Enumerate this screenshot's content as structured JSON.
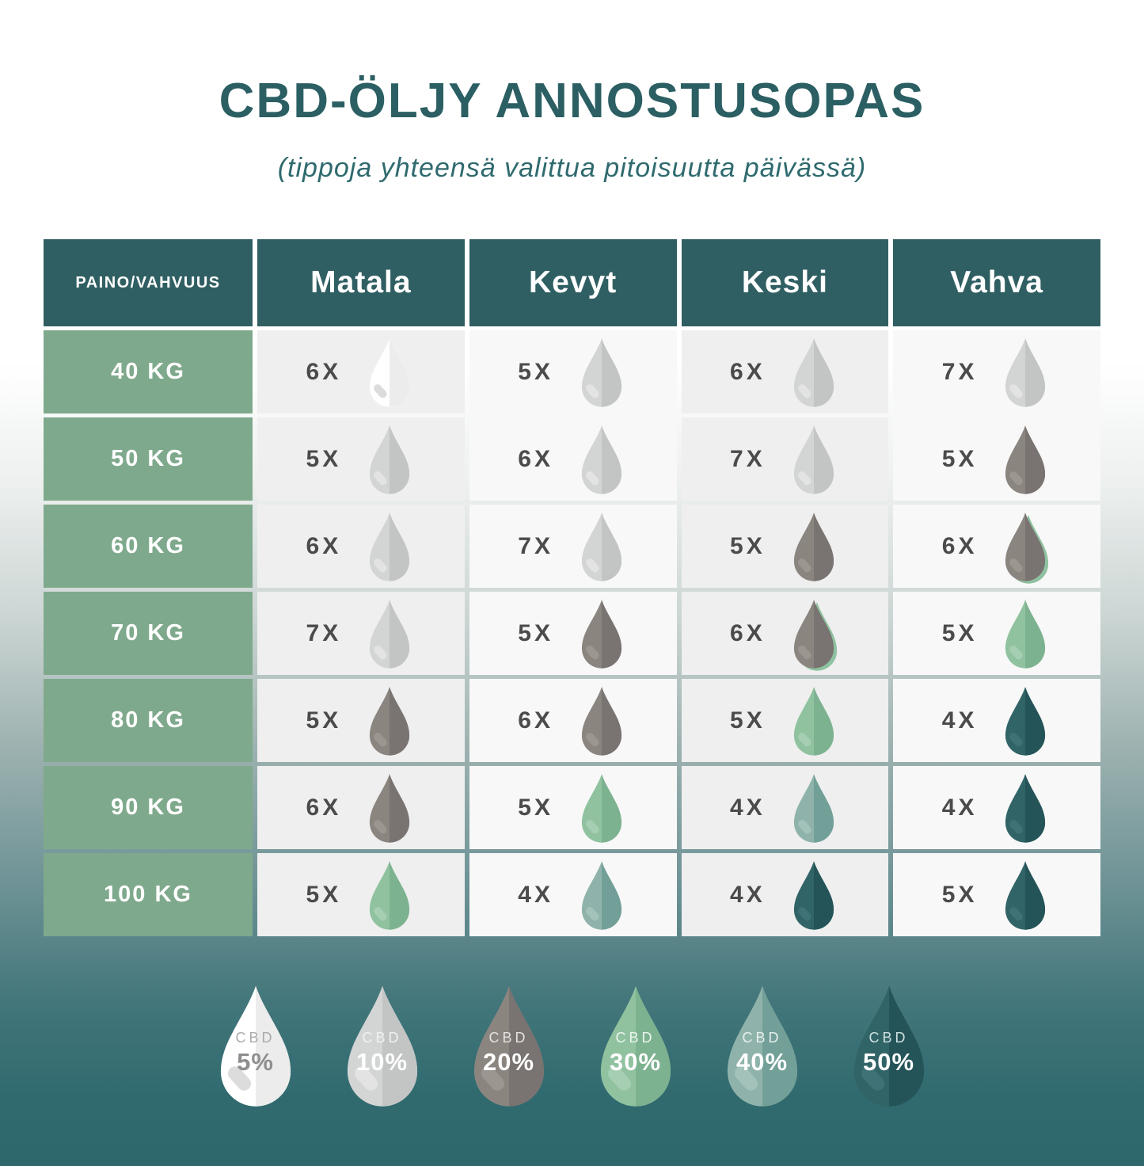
{
  "title": "CBD-ÖLJY ANNOSTUSOPAS",
  "subtitle": "(tippoja yhteensä valittua pitoisuutta päivässä)",
  "colors": {
    "header_bg": "#305f63",
    "weight_bg": "#7fa98c",
    "page_teal": "#316b70",
    "title_text": "#2b5f63",
    "count_text": "#4b4b4b",
    "accent_green": "#8fc2a0"
  },
  "drop_colors": {
    "5": {
      "left": "#ffffff",
      "right": "#ececec",
      "highlight": "#dcdcdc"
    },
    "10": {
      "left": "#d3d5d5",
      "right": "#c3c5c5",
      "highlight": "#e3e3e3"
    },
    "20": {
      "left": "#8b8580",
      "right": "#797371",
      "highlight": "#9c9691"
    },
    "30": {
      "left": "#90c2a0",
      "right": "#7db290",
      "highlight": "#a5ceb2"
    },
    "40": {
      "left": "#8fb3ab",
      "right": "#72a098",
      "highlight": "#a3c2ba"
    },
    "50": {
      "left": "#316467",
      "right": "#255458",
      "highlight": "#3e7276"
    }
  },
  "table": {
    "corner_label": "PAINO/VAHVUUS",
    "columns": [
      "Matala",
      "Kevyt",
      "Keski",
      "Vahva"
    ],
    "rows": [
      {
        "weight": "40 KG",
        "cells": [
          {
            "count": "6X",
            "pct": "5"
          },
          {
            "count": "5X",
            "pct": "10"
          },
          {
            "count": "6X",
            "pct": "10"
          },
          {
            "count": "7X",
            "pct": "10"
          }
        ]
      },
      {
        "weight": "50 KG",
        "cells": [
          {
            "count": "5X",
            "pct": "10"
          },
          {
            "count": "6X",
            "pct": "10"
          },
          {
            "count": "7X",
            "pct": "10"
          },
          {
            "count": "5X",
            "pct": "20"
          }
        ]
      },
      {
        "weight": "60 KG",
        "cells": [
          {
            "count": "6X",
            "pct": "10"
          },
          {
            "count": "7X",
            "pct": "10"
          },
          {
            "count": "5X",
            "pct": "20"
          },
          {
            "count": "6X",
            "pct": "20",
            "accent": true
          }
        ]
      },
      {
        "weight": "70 KG",
        "cells": [
          {
            "count": "7X",
            "pct": "10"
          },
          {
            "count": "5X",
            "pct": "20"
          },
          {
            "count": "6X",
            "pct": "20",
            "accent": true
          },
          {
            "count": "5X",
            "pct": "30"
          }
        ]
      },
      {
        "weight": "80 KG",
        "cells": [
          {
            "count": "5X",
            "pct": "20"
          },
          {
            "count": "6X",
            "pct": "20"
          },
          {
            "count": "5X",
            "pct": "30"
          },
          {
            "count": "4X",
            "pct": "50"
          }
        ]
      },
      {
        "weight": "90 KG",
        "cells": [
          {
            "count": "6X",
            "pct": "20"
          },
          {
            "count": "5X",
            "pct": "30"
          },
          {
            "count": "4X",
            "pct": "40"
          },
          {
            "count": "4X",
            "pct": "50"
          }
        ]
      },
      {
        "weight": "100 KG",
        "cells": [
          {
            "count": "5X",
            "pct": "30"
          },
          {
            "count": "4X",
            "pct": "40"
          },
          {
            "count": "4X",
            "pct": "50"
          },
          {
            "count": "5X",
            "pct": "50"
          }
        ]
      }
    ]
  },
  "legend": {
    "items": [
      {
        "label": "CBD",
        "pct": "5",
        "pct_label": "5%",
        "cbd_color": "#ababab",
        "pct_color": "#8e8e8e"
      },
      {
        "label": "CBD",
        "pct": "10",
        "pct_label": "10%",
        "cbd_color": "#f0f0f0",
        "pct_color": "#ffffff"
      },
      {
        "label": "CBD",
        "pct": "20",
        "pct_label": "20%",
        "cbd_color": "#e4e1de",
        "pct_color": "#ffffff"
      },
      {
        "label": "CBD",
        "pct": "30",
        "pct_label": "30%",
        "cbd_color": "#eaf5ee",
        "pct_color": "#ffffff"
      },
      {
        "label": "CBD",
        "pct": "40",
        "pct_label": "40%",
        "cbd_color": "#e7efed",
        "pct_color": "#ffffff"
      },
      {
        "label": "CBD",
        "pct": "50",
        "pct_label": "50%",
        "cbd_color": "#cfe0e0",
        "pct_color": "#ffffff"
      }
    ]
  },
  "chart_data": {
    "type": "table",
    "title": "CBD-ÖLJY ANNOSTUSOPAS",
    "subtitle": "(tippoja yhteensä valittua pitoisuutta päivässä)",
    "columns": [
      "PAINO/VAHVUUS",
      "Matala",
      "Kevyt",
      "Keski",
      "Vahva"
    ],
    "rows": [
      [
        "40 KG",
        "6X @ 5%",
        "5X @ 10%",
        "6X @ 10%",
        "7X @ 10%"
      ],
      [
        "50 KG",
        "5X @ 10%",
        "6X @ 10%",
        "7X @ 10%",
        "5X @ 20%"
      ],
      [
        "60 KG",
        "6X @ 10%",
        "7X @ 10%",
        "5X @ 20%",
        "6X @ 20%"
      ],
      [
        "70 KG",
        "7X @ 10%",
        "5X @ 20%",
        "6X @ 20%",
        "5X @ 30%"
      ],
      [
        "80 KG",
        "5X @ 20%",
        "6X @ 20%",
        "5X @ 30%",
        "4X @ 50%"
      ],
      [
        "90 KG",
        "6X @ 20%",
        "5X @ 30%",
        "4X @ 40%",
        "4X @ 50%"
      ],
      [
        "100 KG",
        "5X @ 30%",
        "4X @ 40%",
        "4X @ 50%",
        "5X @ 50%"
      ]
    ],
    "legend": [
      "CBD 5%",
      "CBD 10%",
      "CBD 20%",
      "CBD 30%",
      "CBD 40%",
      "CBD 50%"
    ],
    "legend_position": "bottom"
  }
}
